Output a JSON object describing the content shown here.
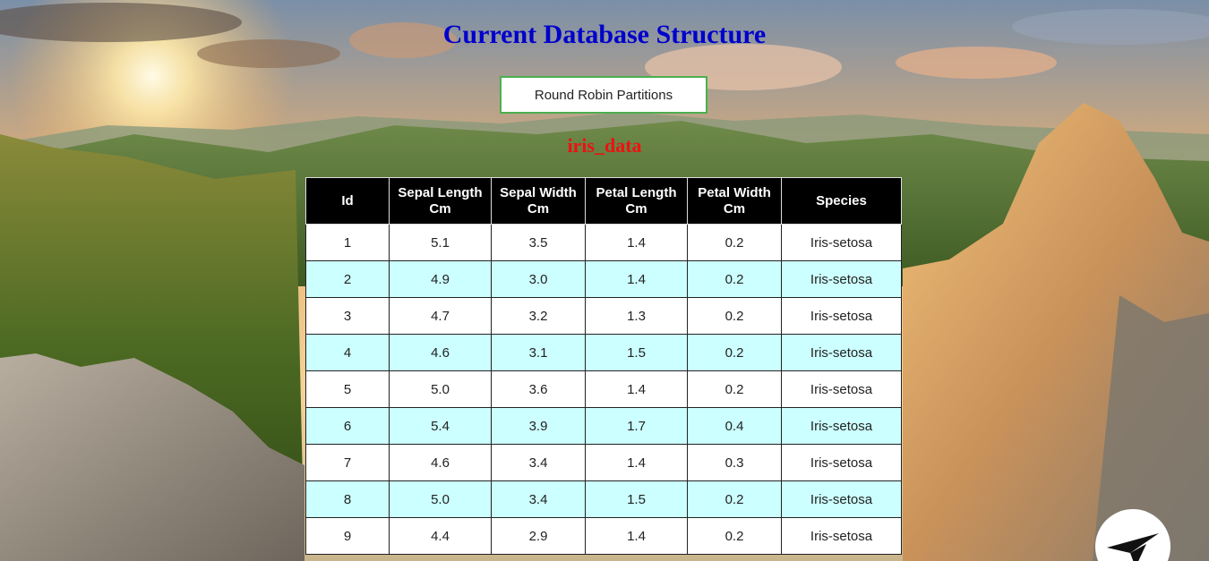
{
  "page": {
    "title": "Current Database Structure"
  },
  "controls": {
    "round_robin_label": "Round Robin Partitions"
  },
  "table": {
    "name": "iris_data",
    "columns": [
      "Id",
      "Sepal Length Cm",
      "Sepal Width Cm",
      "Petal Length Cm",
      "Petal Width Cm",
      "Species"
    ],
    "rows": [
      [
        "1",
        "5.1",
        "3.5",
        "1.4",
        "0.2",
        "Iris-setosa"
      ],
      [
        "2",
        "4.9",
        "3.0",
        "1.4",
        "0.2",
        "Iris-setosa"
      ],
      [
        "3",
        "4.7",
        "3.2",
        "1.3",
        "0.2",
        "Iris-setosa"
      ],
      [
        "4",
        "4.6",
        "3.1",
        "1.5",
        "0.2",
        "Iris-setosa"
      ],
      [
        "5",
        "5.0",
        "3.6",
        "1.4",
        "0.2",
        "Iris-setosa"
      ],
      [
        "6",
        "5.4",
        "3.9",
        "1.7",
        "0.4",
        "Iris-setosa"
      ],
      [
        "7",
        "4.6",
        "3.4",
        "1.4",
        "0.3",
        "Iris-setosa"
      ],
      [
        "8",
        "5.0",
        "3.4",
        "1.5",
        "0.2",
        "Iris-setosa"
      ],
      [
        "9",
        "4.4",
        "2.9",
        "1.4",
        "0.2",
        "Iris-setosa"
      ]
    ]
  },
  "colors": {
    "title": "#0000cc",
    "table_name": "#ee1111",
    "header_bg": "#000000",
    "row_alt_bg": "#ccffff",
    "button_border": "#4caf50"
  },
  "icons": {
    "corner": "arrow-badge-icon"
  }
}
